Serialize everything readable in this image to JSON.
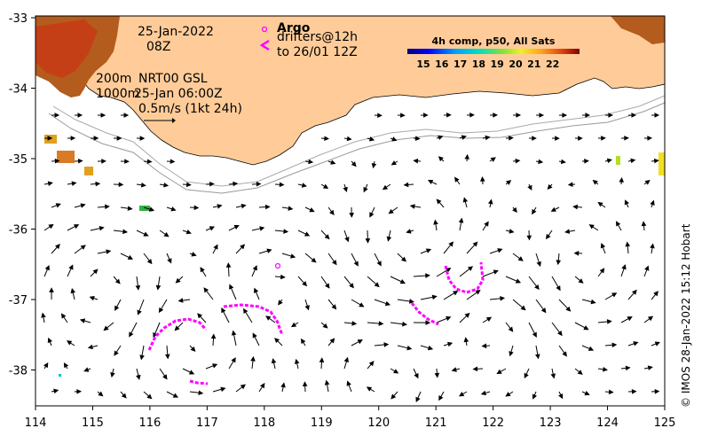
{
  "map": {
    "date": "25-Jan-2022",
    "hour": "08Z",
    "contour_label_1": "200m",
    "contour_label_2": "1000m",
    "source": "NRT00 GSL",
    "valid_time": "25-Jan 06:00Z",
    "scale_label": "0.5m/s (1kt 24h)",
    "argo_label": "Argo",
    "drifters_label_1": "drifters@12h",
    "drifters_label_2": "to 26/01 12Z",
    "colorbar_title": "4h comp, p50, All Sats",
    "colorbar_ticks": [
      "15",
      "16",
      "17",
      "18",
      "19",
      "20",
      "21",
      "22"
    ],
    "x_ticks": [
      "114",
      "115",
      "116",
      "117",
      "118",
      "119",
      "120",
      "121",
      "122",
      "123",
      "124",
      "125"
    ],
    "y_ticks": [
      "-33",
      "-34",
      "-35",
      "-36",
      "-37",
      "-38"
    ],
    "credit": "© IMOS 28-Jan-2022 15:12 Hobart",
    "colors": {
      "land": "#ffcc99",
      "drifter": "#ff00ff",
      "sst_warm": "#b35c1e",
      "sst_hot": "#cc3311",
      "sst_cool": "#e0a020"
    }
  }
}
